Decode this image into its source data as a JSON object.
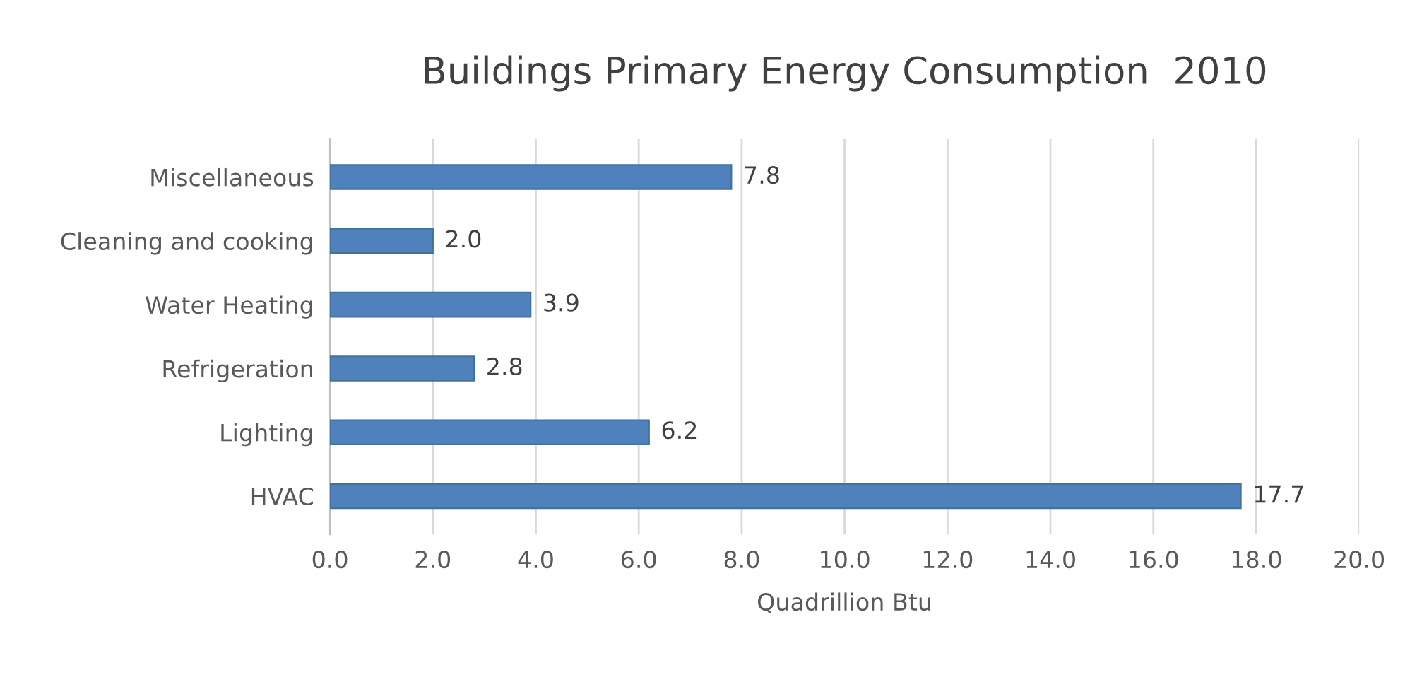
{
  "chart_data": {
    "type": "bar",
    "orientation": "horizontal",
    "title": "Buildings Primary Energy Consumption  2010",
    "xlabel": "Quadrillion Btu",
    "categories": [
      "Miscellaneous",
      "Cleaning and cooking",
      "Water Heating",
      "Refrigeration",
      "Lighting",
      "HVAC"
    ],
    "values": [
      7.8,
      2.0,
      3.9,
      2.8,
      6.2,
      17.7
    ],
    "color": "#4f81bd",
    "value_labels": [
      "7.8",
      "2.0",
      "3.9",
      "2.8",
      "6.2",
      "17.7"
    ],
    "xlim": [
      0,
      20
    ],
    "xticks": [
      {
        "value": 0,
        "label": "0.0"
      },
      {
        "value": 2,
        "label": "2.0"
      },
      {
        "value": 4,
        "label": "4.0"
      },
      {
        "value": 6,
        "label": "6.0"
      },
      {
        "value": 8,
        "label": "8.0"
      },
      {
        "value": 10,
        "label": "10.0"
      },
      {
        "value": 12,
        "label": "12.0"
      },
      {
        "value": 14,
        "label": "14.0"
      },
      {
        "value": 16,
        "label": "16.0"
      },
      {
        "value": 18,
        "label": "18.0"
      },
      {
        "value": 20,
        "label": "20.0"
      }
    ],
    "grid": "x",
    "legend": false
  }
}
